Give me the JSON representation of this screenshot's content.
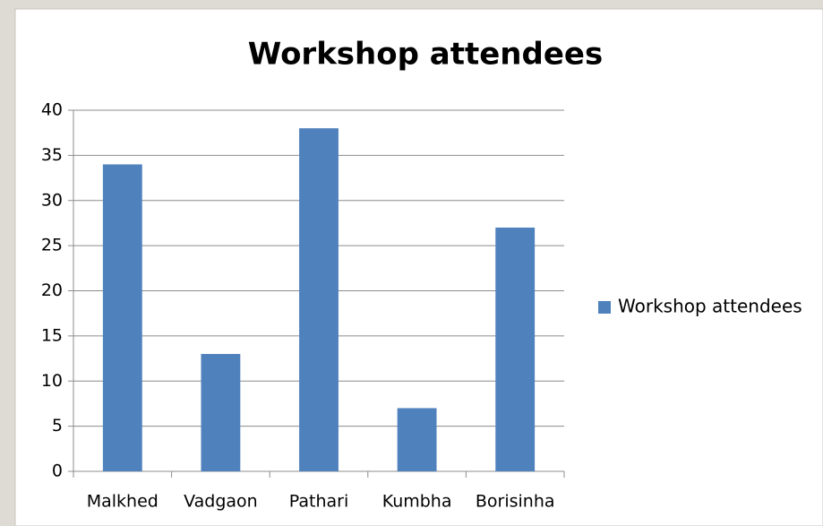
{
  "chart_data": {
    "type": "bar",
    "title": "Workshop attendees",
    "categories": [
      "Malkhed",
      "Vadgaon",
      "Pathari",
      "Kumbha",
      "Borisinha"
    ],
    "series": [
      {
        "name": "Workshop attendees",
        "color": "#4f81bd",
        "values": [
          34,
          13,
          38,
          7,
          27
        ]
      }
    ],
    "ylim": [
      0,
      40
    ],
    "yticks": [
      0,
      5,
      10,
      15,
      20,
      25,
      30,
      35,
      40
    ],
    "grid": true,
    "legend": "right"
  }
}
